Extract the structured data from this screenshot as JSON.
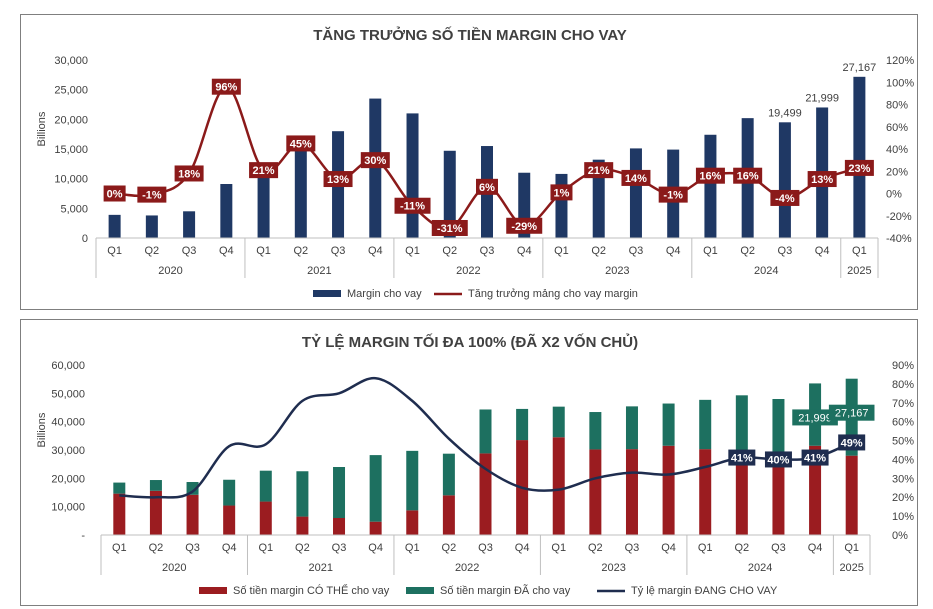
{
  "chart_data": [
    {
      "type": "bar",
      "title": "TĂNG TRƯỞNG SỐ TIỀN MARGIN CHO VAY",
      "ylabel": "Billions",
      "quarters": [
        "Q1",
        "Q2",
        "Q3",
        "Q4",
        "Q1",
        "Q2",
        "Q3",
        "Q4",
        "Q1",
        "Q2",
        "Q3",
        "Q4",
        "Q1",
        "Q2",
        "Q3",
        "Q4",
        "Q1",
        "Q2",
        "Q3",
        "Q4",
        "Q1"
      ],
      "years": [
        {
          "label": "2020",
          "count": 4
        },
        {
          "label": "2021",
          "count": 4
        },
        {
          "label": "2022",
          "count": 4
        },
        {
          "label": "2023",
          "count": 4
        },
        {
          "label": "2024",
          "count": 4
        },
        {
          "label": "2025",
          "count": 1
        }
      ],
      "ylim": [
        0,
        30000
      ],
      "yticks": [
        "0",
        "5,000",
        "10,000",
        "15,000",
        "20,000",
        "25,000",
        "30,000"
      ],
      "y2lim": [
        -40,
        120
      ],
      "y2ticks": [
        "-40%",
        "-20%",
        "0%",
        "20%",
        "40%",
        "60%",
        "80%",
        "100%",
        "120%"
      ],
      "series": [
        {
          "name": "Margin cho vay",
          "color": "#1f3864",
          "values": [
            3900,
            3800,
            4500,
            9100,
            10900,
            16000,
            18000,
            23500,
            21000,
            14700,
            15500,
            11000,
            10800,
            13200,
            15100,
            14900,
            17400,
            20200,
            19499,
            21999,
            27167
          ],
          "value_labels": [
            "",
            "",
            "",
            "",
            "",
            "",
            "",
            "",
            "",
            "",
            "",
            "",
            "",
            "",
            "",
            "",
            "",
            "",
            "19,499",
            "21,999",
            "27,167"
          ]
        },
        {
          "name": "Tăng trưởng mảng cho vay margin",
          "color": "#8b1a1a",
          "values": [
            0,
            -1,
            18,
            96,
            21,
            45,
            13,
            30,
            -11,
            -31,
            6,
            -29,
            1,
            21,
            14,
            -1,
            16,
            16,
            -4,
            13,
            23
          ],
          "value_labels": [
            "0%",
            "-1%",
            "18%",
            "96%",
            "21%",
            "45%",
            "13%",
            "30%",
            "-11%",
            "-31%",
            "6%",
            "-29%",
            "1%",
            "21%",
            "14%",
            "-1%",
            "16%",
            "16%",
            "-4%",
            "13%",
            "23%"
          ]
        }
      ],
      "legend": [
        "Margin cho vay",
        "Tăng trưởng mảng cho vay margin"
      ],
      "legend_position": "bottom"
    },
    {
      "type": "bar",
      "title": "TỶ LỆ MARGIN TỐI ĐA 100% (ĐÃ X2 VỐN CHỦ)",
      "ylabel": "Billions",
      "quarters": [
        "Q1",
        "Q2",
        "Q3",
        "Q4",
        "Q1",
        "Q2",
        "Q3",
        "Q4",
        "Q1",
        "Q2",
        "Q3",
        "Q4",
        "Q1",
        "Q2",
        "Q3",
        "Q4",
        "Q1",
        "Q2",
        "Q3",
        "Q4",
        "Q1"
      ],
      "years": [
        {
          "label": "2020",
          "count": 4
        },
        {
          "label": "2021",
          "count": 4
        },
        {
          "label": "2022",
          "count": 4
        },
        {
          "label": "2023",
          "count": 4
        },
        {
          "label": "2024",
          "count": 4
        },
        {
          "label": "2025",
          "count": 1
        }
      ],
      "ylim": [
        0,
        60000
      ],
      "yticks": [
        "-",
        "10,000",
        "20,000",
        "30,000",
        "40,000",
        "50,000",
        "60,000"
      ],
      "y2lim": [
        0,
        90
      ],
      "y2ticks": [
        "0%",
        "10%",
        "20%",
        "30%",
        "40%",
        "50%",
        "60%",
        "70%",
        "80%",
        "90%"
      ],
      "stacked": true,
      "series": [
        {
          "name": "Số tiền margin CÓ THỂ cho vay",
          "color": "#9b1c20",
          "values": [
            14600,
            15600,
            14200,
            10400,
            11800,
            6500,
            6000,
            4700,
            8700,
            14000,
            28800,
            33500,
            34500,
            30200,
            30300,
            31500,
            30300,
            29100,
            28500,
            31500,
            28000
          ]
        },
        {
          "name": "Số tiền margin ĐÃ cho vay",
          "color": "#1d7060",
          "values": [
            3900,
            3800,
            4500,
            9100,
            10900,
            16000,
            18000,
            23500,
            21000,
            14700,
            15500,
            11000,
            10800,
            13200,
            15100,
            14900,
            17400,
            20200,
            19499,
            21999,
            27167
          ],
          "value_labels": [
            "",
            "",
            "",
            "",
            "",
            "",
            "",
            "",
            "",
            "",
            "",
            "",
            "",
            "",
            "",
            "",
            "",
            "",
            "",
            "21,999",
            "27,167"
          ]
        },
        {
          "name": "Tỷ lệ margin ĐANG CHO VAY",
          "color": "#1f2d4f",
          "values": [
            21,
            20,
            23,
            47,
            48,
            71,
            75,
            83,
            71,
            51,
            35,
            25,
            24,
            30,
            33,
            32,
            36,
            41,
            40,
            41,
            49
          ],
          "value_labels": [
            "",
            "",
            "",
            "",
            "",
            "",
            "",
            "",
            "",
            "",
            "",
            "",
            "",
            "",
            "",
            "",
            "",
            "41%",
            "40%",
            "41%",
            "49%"
          ]
        }
      ],
      "legend": [
        "Số tiền margin CÓ THỂ cho vay",
        "Số tiền margin ĐÃ cho vay",
        "Tỷ lệ margin ĐANG CHO VAY"
      ],
      "legend_position": "bottom"
    }
  ]
}
